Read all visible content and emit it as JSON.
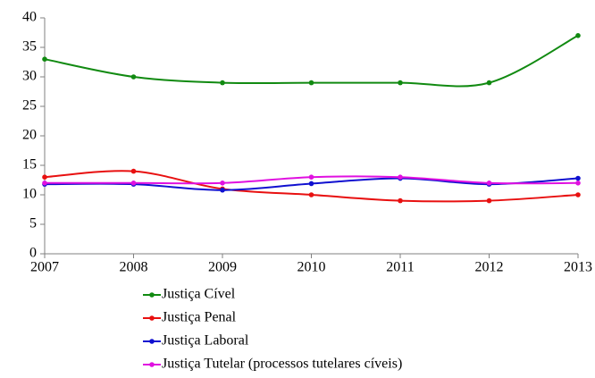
{
  "chart_data": {
    "type": "line",
    "x": [
      2007,
      2008,
      2009,
      2010,
      2011,
      2012,
      2013
    ],
    "xlim": [
      2007,
      2013
    ],
    "xticks": [
      2007,
      2008,
      2009,
      2010,
      2011,
      2012,
      2013
    ],
    "ylim": [
      0,
      40
    ],
    "yticks": [
      0,
      5,
      10,
      15,
      20,
      25,
      30,
      35,
      40
    ],
    "grid": false,
    "smooth": true,
    "legend": "bottom",
    "series": [
      {
        "name": "Justiça Cível",
        "color": "#118a11",
        "values": [
          33,
          30,
          29,
          29,
          29,
          29,
          37
        ]
      },
      {
        "name": "Justiça Penal",
        "color": "#e81010",
        "values": [
          13,
          14,
          11,
          10,
          9,
          9,
          10
        ]
      },
      {
        "name": "Justiça Laboral",
        "color": "#1010d0",
        "values": [
          11.8,
          11.8,
          10.8,
          11.9,
          12.8,
          11.8,
          12.8
        ]
      },
      {
        "name": "Justiça Tutelar (processos tutelares cíveis)",
        "color": "#e010e0",
        "values": [
          12,
          12,
          12,
          13,
          13,
          12,
          12
        ]
      }
    ]
  }
}
